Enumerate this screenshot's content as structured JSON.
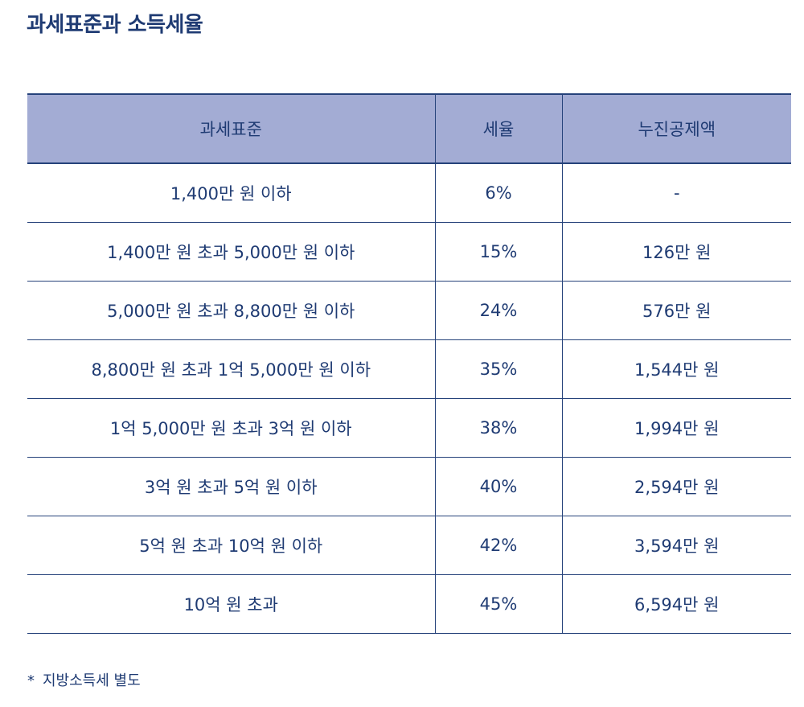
{
  "title": "과세표준과 소득세율",
  "table": {
    "headers": [
      "과세표준",
      "세율",
      "누진공제액"
    ],
    "rows": [
      [
        "1,400만 원 이하",
        "6%",
        "-"
      ],
      [
        "1,400만 원 초과 5,000만 원 이하",
        "15%",
        "126만 원"
      ],
      [
        "5,000만 원 초과 8,800만 원 이하",
        "24%",
        "576만 원"
      ],
      [
        "8,800만 원 초과 1억 5,000만 원 이하",
        "35%",
        "1,544만 원"
      ],
      [
        "1억 5,000만 원 초과 3억 원 이하",
        "38%",
        "1,994만 원"
      ],
      [
        "3억 원 초과 5억 원 이하",
        "40%",
        "2,594만 원"
      ],
      [
        "5억 원 초과 10억 원 이하",
        "42%",
        "3,594만 원"
      ],
      [
        "10억 원 초과",
        "45%",
        "6,594만 원"
      ]
    ]
  },
  "footnote": {
    "mark": "*",
    "text": "지방소득세 별도"
  }
}
